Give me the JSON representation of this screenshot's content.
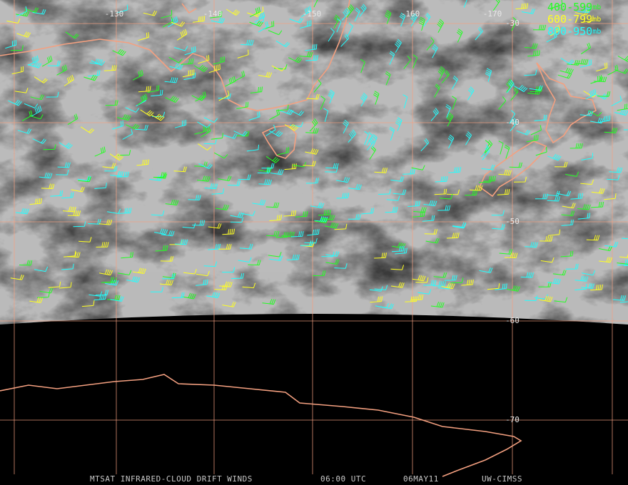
{
  "legend": [
    {
      "range": "400-599",
      "unit": "mb",
      "color": "#22ff22"
    },
    {
      "range": "600-799",
      "unit": "mb",
      "color": "#ffff22"
    },
    {
      "range": "800-950",
      "unit": "mb",
      "color": "#22ffff"
    }
  ],
  "grid": {
    "longitudes": [
      "-130",
      "-140",
      "-150",
      "-160",
      "-170"
    ],
    "latitudes": [
      "-30",
      "-40",
      "-50",
      "-60",
      "-70"
    ]
  },
  "footer": {
    "product": "MTSAT INFRARED-CLOUD DRIFT WINDS",
    "time": "06:00 UTC",
    "date": "06MAY11",
    "source": "UW-CIMSS"
  }
}
